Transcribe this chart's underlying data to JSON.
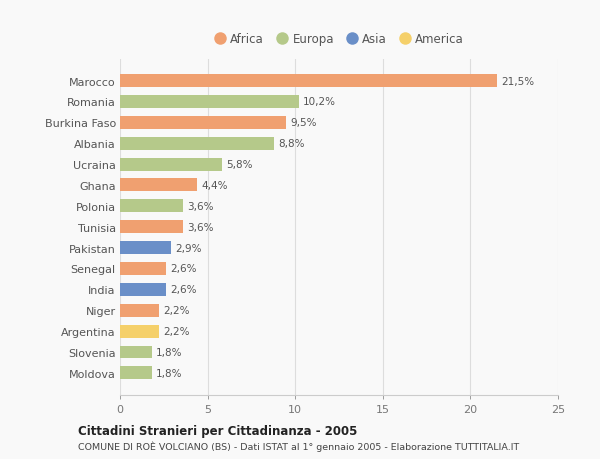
{
  "countries": [
    "Moldova",
    "Slovenia",
    "Argentina",
    "Niger",
    "India",
    "Senegal",
    "Pakistan",
    "Tunisia",
    "Polonia",
    "Ghana",
    "Ucraina",
    "Albania",
    "Burkina Faso",
    "Romania",
    "Marocco"
  ],
  "values": [
    1.8,
    1.8,
    2.2,
    2.2,
    2.6,
    2.6,
    2.9,
    3.6,
    3.6,
    4.4,
    5.8,
    8.8,
    9.5,
    10.2,
    21.5
  ],
  "colors": [
    "#b5c98a",
    "#b5c98a",
    "#f5d06a",
    "#f0a070",
    "#6a8fc8",
    "#f0a070",
    "#6a8fc8",
    "#f0a070",
    "#b5c98a",
    "#f0a070",
    "#b5c98a",
    "#b5c98a",
    "#f0a070",
    "#b5c98a",
    "#f0a070"
  ],
  "labels": [
    "1,8%",
    "1,8%",
    "2,2%",
    "2,2%",
    "2,6%",
    "2,6%",
    "2,9%",
    "3,6%",
    "3,6%",
    "4,4%",
    "5,8%",
    "8,8%",
    "9,5%",
    "10,2%",
    "21,5%"
  ],
  "legend": [
    {
      "label": "Africa",
      "color": "#f0a070"
    },
    {
      "label": "Europa",
      "color": "#b5c98a"
    },
    {
      "label": "Asia",
      "color": "#6a8fc8"
    },
    {
      "label": "America",
      "color": "#f5d06a"
    }
  ],
  "title": "Cittadini Stranieri per Cittadinanza - 2005",
  "subtitle": "COMUNE DI ROÈ VOLCIANO (BS) - Dati ISTAT al 1° gennaio 2005 - Elaborazione TUTTITALIA.IT",
  "xlim": [
    0,
    25
  ],
  "xticks": [
    0,
    5,
    10,
    15,
    20,
    25
  ],
  "background_color": "#f9f9f9",
  "grid_color": "#dddddd",
  "bar_height": 0.62
}
